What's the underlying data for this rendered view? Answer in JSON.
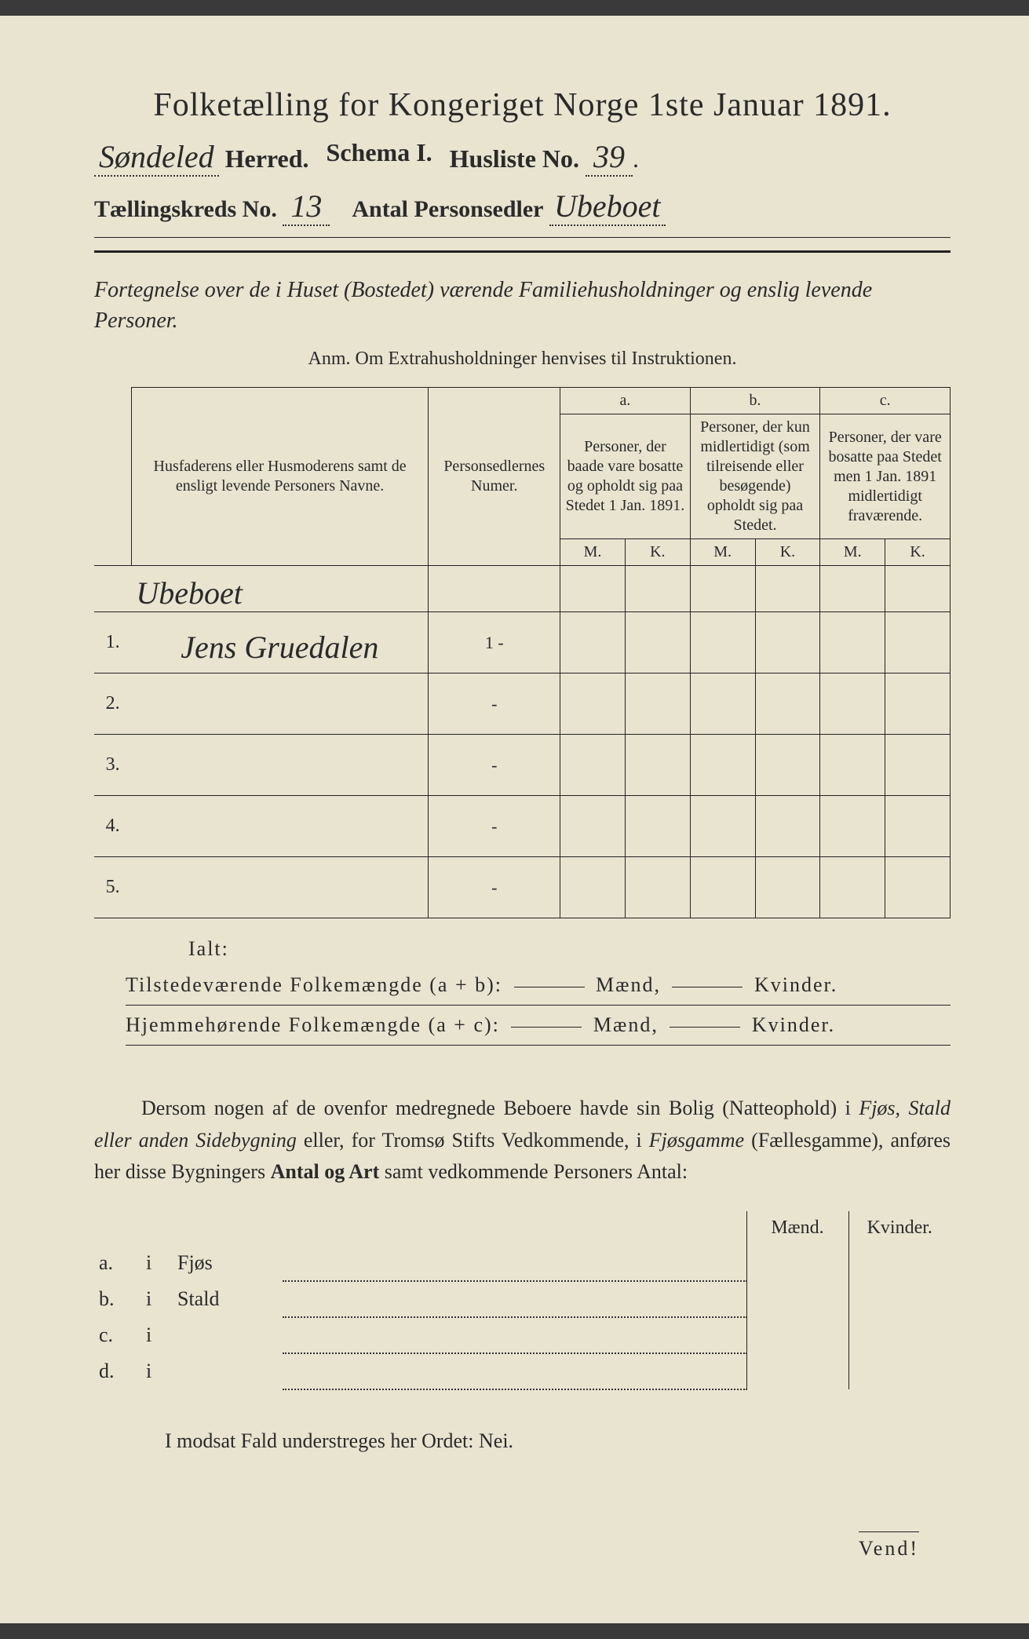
{
  "title": "Folketælling for Kongeriget Norge 1ste Januar 1891.",
  "herred_value": "Søndeled",
  "herred_label": "Herred.",
  "schema_label": "Schema I.",
  "husliste_label": "Husliste No.",
  "husliste_value": "39",
  "kreds_label": "Tællingskreds No.",
  "kreds_value": "13",
  "antal_label": "Antal Personsedler",
  "antal_value": "Ubeboet",
  "fortegnelse": "Fortegnelse over de i Huset (Bostedet) værende Familiehusholdninger og enslig levende Personer.",
  "anm": "Anm.  Om Extrahusholdninger henvises til Instruktionen.",
  "col_names": "Husfaderens eller Husmoderens samt de ensligt levende Personers Navne.",
  "col_numer": "Personsedlernes Numer.",
  "col_a_top": "a.",
  "col_a": "Personer, der baade vare bosatte og opholdt sig paa Stedet 1 Jan. 1891.",
  "col_b_top": "b.",
  "col_b": "Personer, der kun midlertidigt (som tilreisende eller besøgende) opholdt sig paa Stedet.",
  "col_c_top": "c.",
  "col_c": "Personer, der vare bosatte paa Stedet men 1 Jan. 1891 midlertidigt fraværende.",
  "mk_m": "M.",
  "mk_k": "K.",
  "header_hand": "Ubeboet",
  "rows": [
    {
      "n": "1.",
      "name": "Jens Gruedalen",
      "num": "1 -"
    },
    {
      "n": "2.",
      "name": "",
      "num": "-"
    },
    {
      "n": "3.",
      "name": "",
      "num": "-"
    },
    {
      "n": "4.",
      "name": "",
      "num": "-"
    },
    {
      "n": "5.",
      "name": "",
      "num": "-"
    }
  ],
  "ialt": "Ialt:",
  "tilstede": "Tilstedeværende Folkemængde (a + b):",
  "hjemme": "Hjemmehørende Folkemængde (a + c):",
  "maend": "Mænd,",
  "kvinder": "Kvinder.",
  "para_text": "Dersom nogen af de ovenfor medregnede Beboere havde sin Bolig (Natteophold) i Fjøs, Stald eller anden Sidebygning eller, for Tromsø Stifts Vedkommende, i Fjøsgamme (Fællesgamme), anføres her disse Bygningers Antal og Art samt vedkommende Personers Antal:",
  "bt_maend": "Mænd.",
  "bt_kvinder": "Kvinder.",
  "bt_rows": [
    {
      "l": "a.",
      "t": "Fjøs"
    },
    {
      "l": "b.",
      "t": "Stald"
    },
    {
      "l": "c.",
      "t": ""
    },
    {
      "l": "d.",
      "t": ""
    }
  ],
  "bt_i": "i",
  "nei": "I modsat Fald understreges her Ordet: Nei.",
  "vend": "Vend!",
  "colors": {
    "paper": "#e8e4d0",
    "ink": "#2a2a2a"
  }
}
